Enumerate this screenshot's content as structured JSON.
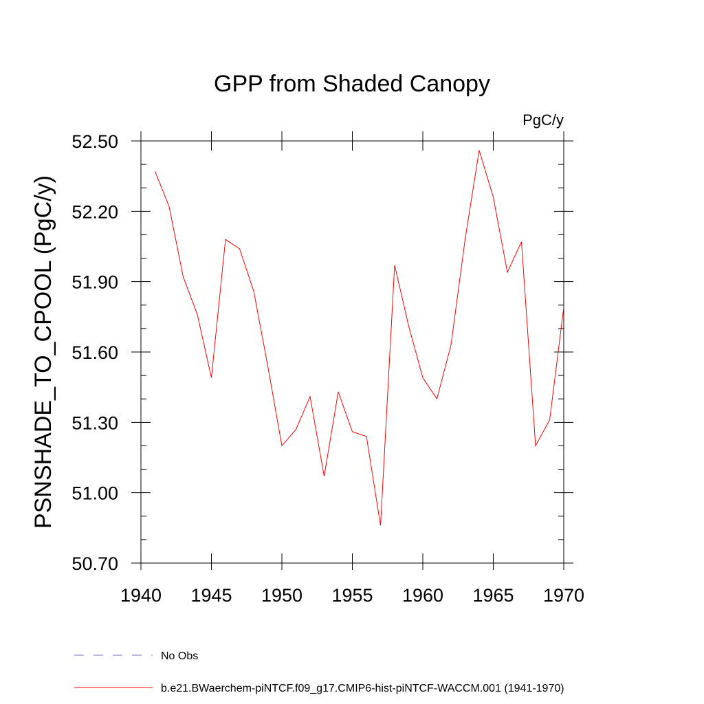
{
  "chart_data": {
    "type": "line",
    "title": "GPP from Shaded Canopy",
    "units_label": "PgC/y",
    "ylabel": "PSNSHADE_TO_CPOOL  (PgC/y)",
    "xlabel": "",
    "xlim": [
      1940,
      1970
    ],
    "ylim": [
      50.7,
      52.5
    ],
    "x_ticks": [
      "1940",
      "1945",
      "1950",
      "1955",
      "1960",
      "1965",
      "1970"
    ],
    "y_ticks": [
      "50.70",
      "51.00",
      "51.30",
      "51.60",
      "51.90",
      "52.20",
      "52.50"
    ],
    "grid": false,
    "legend_position": "bottom-left",
    "series": [
      {
        "name": "b.e21.BWaerchem-piNTCF.f09_g17.CMIP6-hist-piNTCF-WACCM.001 (1941-1970)",
        "color": "#ff0000",
        "style": "solid",
        "x": [
          1941,
          1942,
          1943,
          1944,
          1945,
          1946,
          1947,
          1948,
          1949,
          1950,
          1951,
          1952,
          1953,
          1954,
          1955,
          1956,
          1957,
          1958,
          1959,
          1960,
          1961,
          1962,
          1963,
          1964,
          1965,
          1966,
          1967,
          1968,
          1969,
          1970
        ],
        "y": [
          52.37,
          52.22,
          51.92,
          51.76,
          51.49,
          52.08,
          52.04,
          51.86,
          51.54,
          51.2,
          51.27,
          51.41,
          51.07,
          51.43,
          51.26,
          51.24,
          50.86,
          51.97,
          51.71,
          51.49,
          51.4,
          51.63,
          52.08,
          52.46,
          52.26,
          51.94,
          52.07,
          51.2,
          51.31,
          51.79
        ]
      },
      {
        "name": "No Obs",
        "color": "#7b68c8",
        "style": "dashed",
        "x": [],
        "y": []
      }
    ]
  }
}
